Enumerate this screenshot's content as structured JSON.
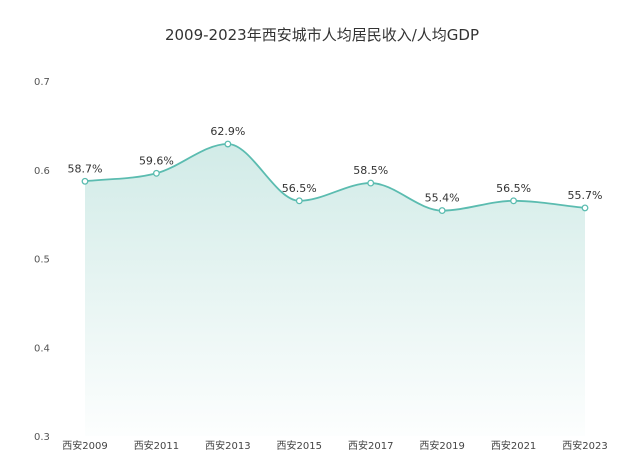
{
  "chart_data": {
    "type": "area",
    "title": "2009-2023年西安城市人均居民收入/人均GDP",
    "xlabel": "",
    "ylabel": "",
    "categories": [
      "西安2009",
      "西安2011",
      "西安2013",
      "西安2015",
      "西安2017",
      "西安2019",
      "西安2021",
      "西安2023"
    ],
    "values": [
      0.587,
      0.596,
      0.629,
      0.565,
      0.585,
      0.554,
      0.565,
      0.557
    ],
    "data_labels": [
      "58.7%",
      "59.6%",
      "62.9%",
      "56.5%",
      "58.5%",
      "55.4%",
      "56.5%",
      "55.7%"
    ],
    "ylim": [
      0.3,
      0.7
    ],
    "yticks": [
      "0.3",
      "0.4",
      "0.5",
      "0.6",
      "0.7"
    ],
    "grid": false,
    "smooth": true,
    "colors": {
      "line": "#5bbcb0",
      "fill": "#cfeae6",
      "marker_fill": "#ffffff"
    }
  }
}
